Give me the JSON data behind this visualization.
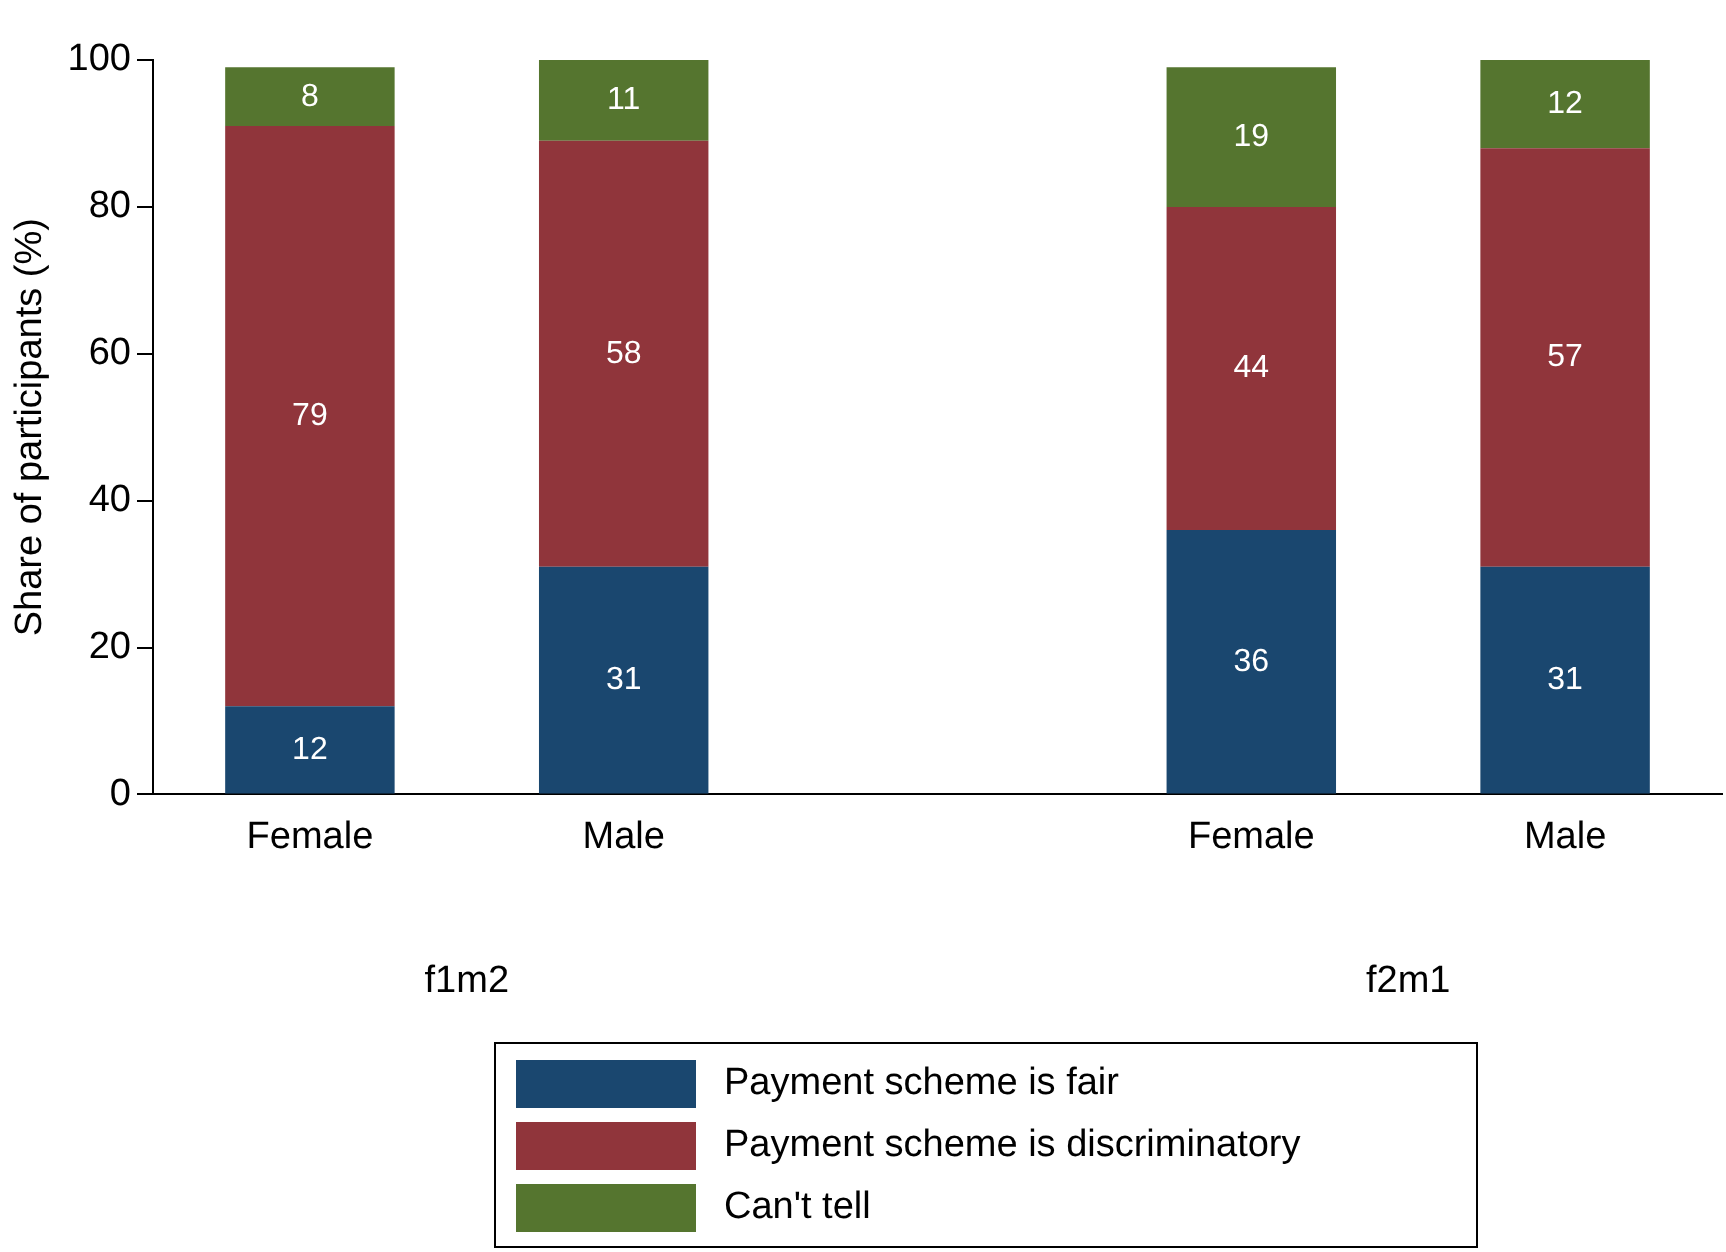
{
  "chart_data": {
    "type": "bar",
    "stacked": true,
    "ylabel": "Share of participants (%)",
    "categories": [
      "Female",
      "Male",
      null,
      "Female",
      "Male"
    ],
    "series": [
      {
        "name": "Payment scheme is fair",
        "color": "#1a476f",
        "values": [
          12,
          31,
          null,
          36,
          31
        ]
      },
      {
        "name": "Payment scheme is discriminatory",
        "color": "#90353b",
        "values": [
          79,
          58,
          null,
          44,
          57
        ]
      },
      {
        "name": "Can't tell",
        "color": "#55752f",
        "values": [
          8,
          11,
          null,
          19,
          12
        ]
      }
    ],
    "annotations": [
      "f1m2",
      "f2m1"
    ],
    "ylim": [
      0,
      100
    ],
    "yticks": [
      0,
      20,
      40,
      60,
      80,
      100
    ],
    "grid": false,
    "legend": "bottom",
    "data_labels": true
  }
}
